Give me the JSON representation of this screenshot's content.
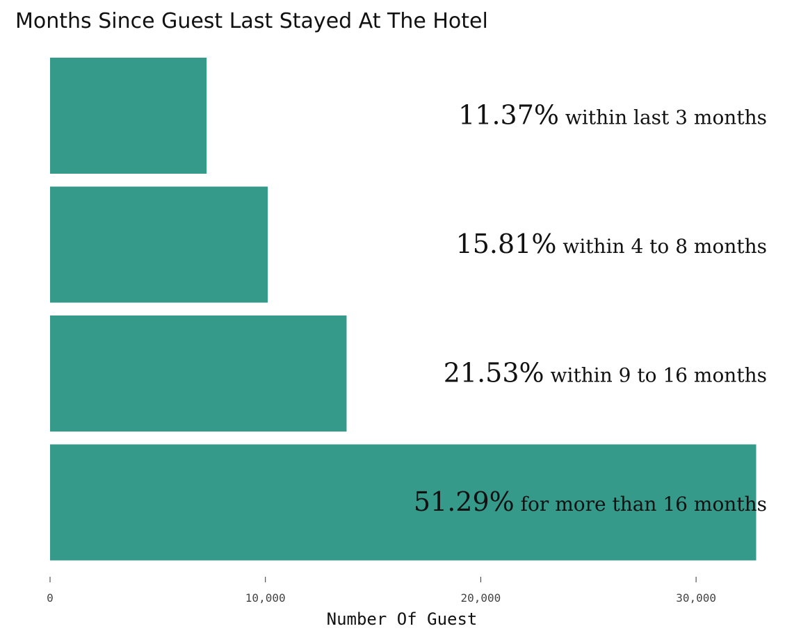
{
  "chart_data": {
    "type": "bar",
    "orientation": "horizontal",
    "title": "Months Since Guest Last Stayed At The Hotel",
    "xlabel": "Number Of Guest",
    "ylabel": "",
    "xlim": [
      0,
      33000
    ],
    "xticks": [
      0,
      10000,
      20000,
      30000
    ],
    "xtick_labels": [
      "0",
      "10,000",
      "20,000",
      "30,000"
    ],
    "grid": false,
    "bar_color": "#359A8A",
    "categories": [
      "within last 3 months",
      "within 4 to 8 months",
      "within 9 to 16 months",
      "for more than 16 months"
    ],
    "values": [
      7270,
      10110,
      13770,
      32790
    ],
    "labels": [
      {
        "pct": "11.37%",
        "desc": "within last 3 months"
      },
      {
        "pct": "15.81%",
        "desc": "within 4 to 8 months"
      },
      {
        "pct": "21.53%",
        "desc": "within 9 to 16 months"
      },
      {
        "pct": "51.29%",
        "desc": "for more than 16 months"
      }
    ]
  }
}
